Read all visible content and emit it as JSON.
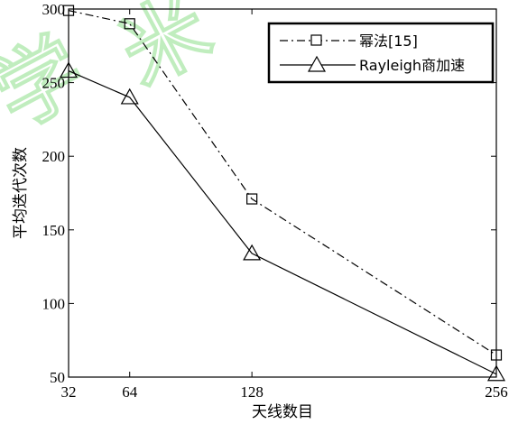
{
  "chart_data": {
    "type": "line",
    "x": [
      32,
      64,
      128,
      256
    ],
    "xticks": [
      "32",
      "64",
      "128",
      "256"
    ],
    "xlim": [
      32,
      256
    ],
    "ylim": [
      50,
      300
    ],
    "yticks": [
      "50",
      "100",
      "150",
      "200",
      "250",
      "300"
    ],
    "xlabel": "天线数目",
    "ylabel": "平均迭代次数",
    "legend_position": "top-right",
    "grid": false,
    "series": [
      {
        "name": "幂法[15]",
        "values": [
          299,
          290,
          171,
          65
        ],
        "marker": "square",
        "line_style": "dash-dot",
        "color": "#000000"
      },
      {
        "name": "Rayleigh商加速",
        "values": [
          258,
          240,
          134,
          52
        ],
        "marker": "triangle",
        "line_style": "solid",
        "color": "#000000"
      }
    ]
  }
}
